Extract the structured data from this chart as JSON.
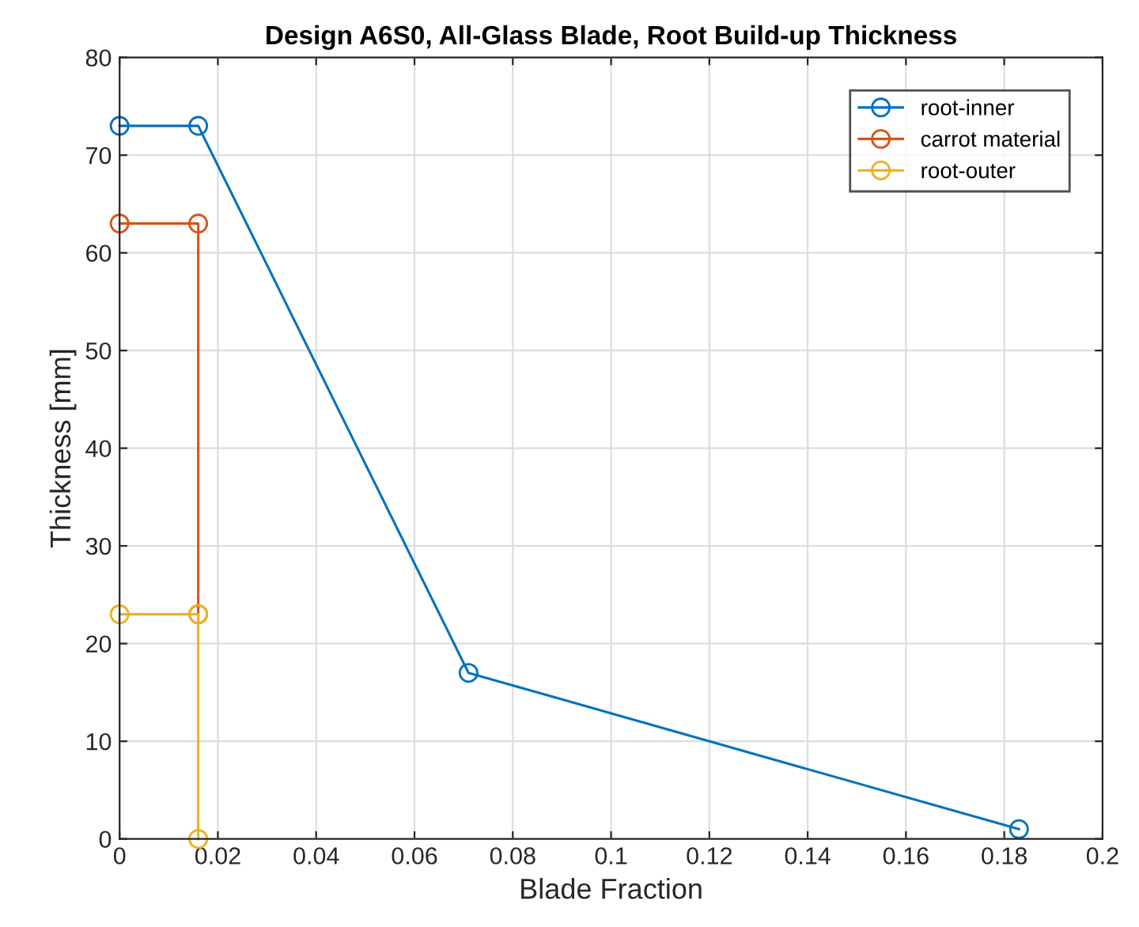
{
  "chart_data": {
    "type": "line",
    "title": "Design A6S0, All-Glass Blade, Root Build-up Thickness",
    "xlabel": "Blade Fraction",
    "ylabel": "Thickness [mm]",
    "series": [
      {
        "name": "root-inner",
        "color": "#0072bd",
        "x": [
          0,
          0.016,
          0.071,
          0.183
        ],
        "values": [
          73,
          73,
          17,
          1
        ]
      },
      {
        "name": "carrot material",
        "color": "#d95319",
        "x": [
          0,
          0.016,
          0.016
        ],
        "values": [
          63,
          63,
          23
        ]
      },
      {
        "name": "root-outer",
        "color": "#edb120",
        "x": [
          0,
          0.016,
          0.016
        ],
        "values": [
          23,
          23,
          0
        ]
      }
    ],
    "xlim": [
      0,
      0.2
    ],
    "xticks": [
      0,
      0.02,
      0.04,
      0.06,
      0.08,
      0.1,
      0.12,
      0.14,
      0.16,
      0.18,
      0.2
    ],
    "ylim": [
      0,
      80
    ],
    "yticks": [
      0,
      10,
      20,
      30,
      40,
      50,
      60,
      70,
      80
    ],
    "grid": true,
    "legend": "top right",
    "marker": "circle",
    "line_style": "solid"
  }
}
